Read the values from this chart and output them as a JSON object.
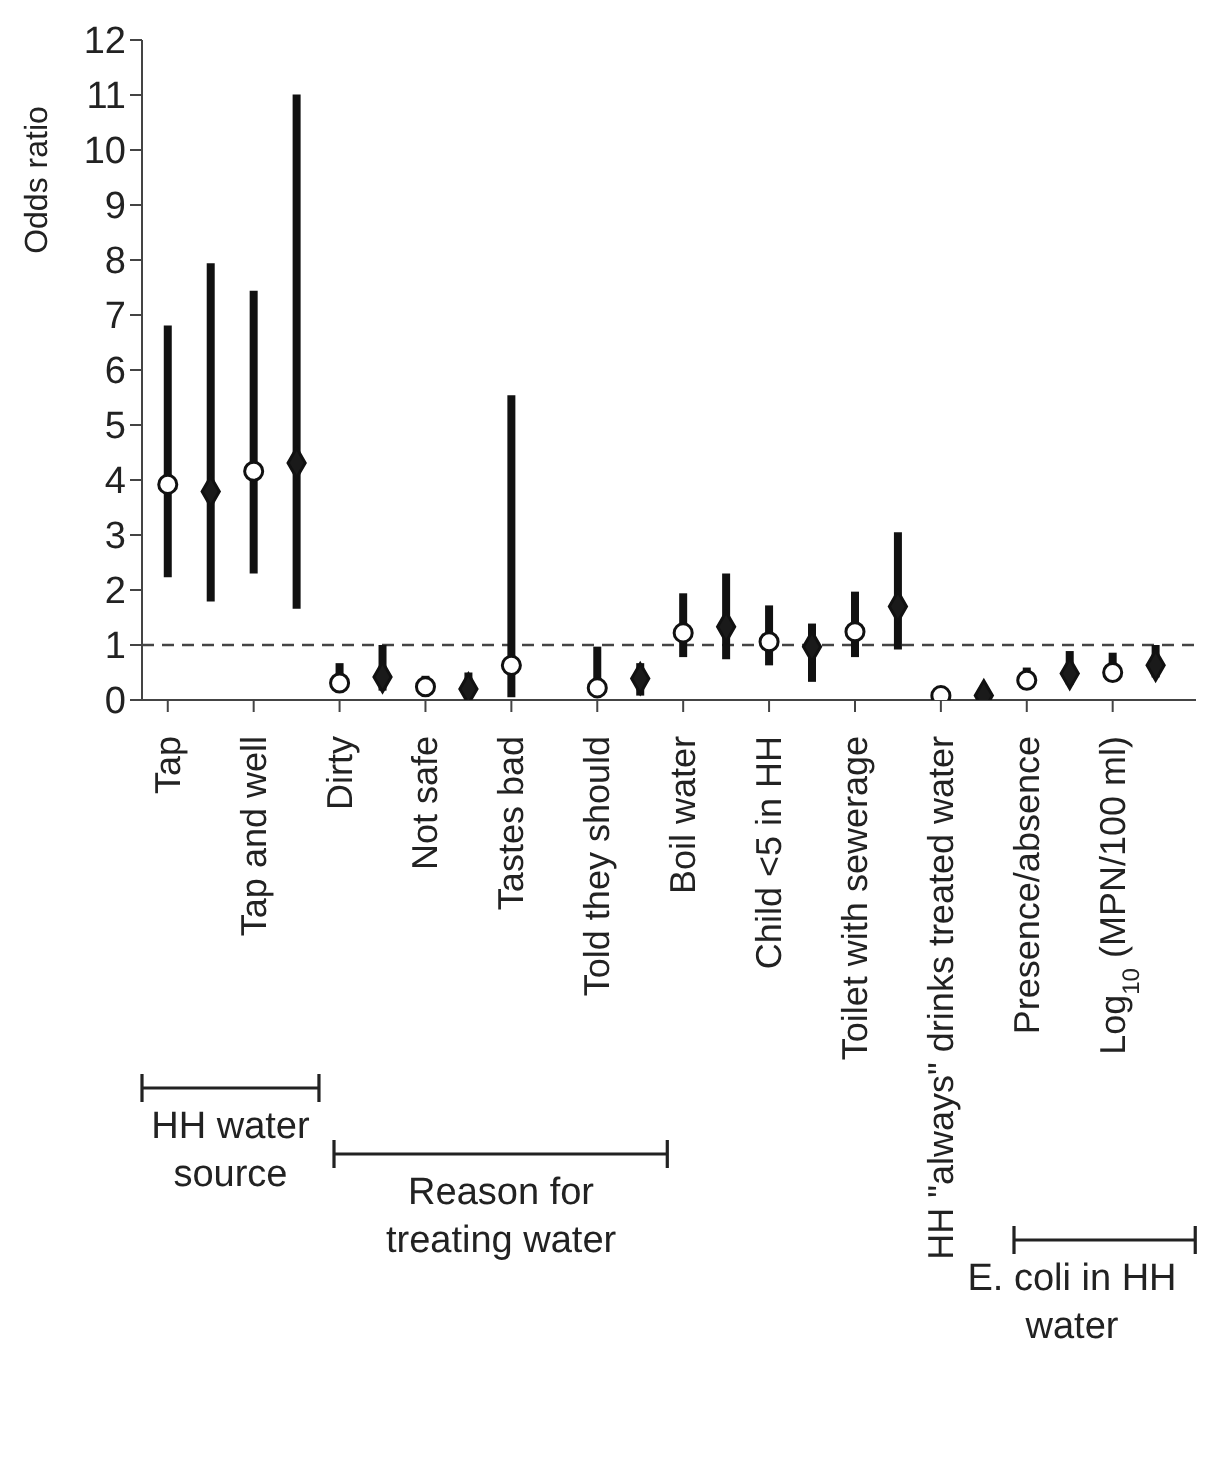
{
  "chart_data": {
    "type": "scatter",
    "ylabel": "Odds ratio",
    "categories": [
      "Tap",
      null,
      "Tap and well",
      null,
      "Dirty",
      null,
      "Not safe",
      null,
      "Tastes bad",
      null,
      "Told they should",
      null,
      "Boil water",
      null,
      "Child <5 in HH",
      null,
      "Toilet with sewerage",
      null,
      "HH \"always\" drinks treated water",
      null,
      "Presence/absence",
      null,
      "Log$_{10}$ (MPN/100 ml)",
      null
    ],
    "series": [
      {
        "color": "#ffffff",
        "marker": "circle",
        "values": [
          3.92,
          null,
          4.16,
          null,
          0.31,
          null,
          0.24,
          null,
          0.63,
          null,
          0.22,
          null,
          1.22,
          null,
          1.06,
          null,
          1.24,
          null,
          0.08,
          null,
          0.36,
          null,
          0.5,
          null
        ],
        "errors": [
          [
            2.23,
            6.81
          ],
          null,
          [
            2.3,
            7.44
          ],
          null,
          [
            0.15,
            0.67
          ],
          null,
          [
            0.15,
            0.44
          ],
          null,
          [
            0.05,
            5.54
          ],
          null,
          [
            0.1,
            0.97
          ],
          null,
          [
            0.78,
            1.94
          ],
          null,
          [
            0.63,
            1.72
          ],
          null,
          [
            0.78,
            1.97
          ],
          null,
          null,
          null,
          [
            0.25,
            0.59
          ],
          null,
          [
            0.38,
            0.86
          ],
          null
        ]
      },
      {
        "color": "#1a1a1a",
        "marker": "diamond",
        "values": [
          null,
          3.79,
          null,
          4.31,
          null,
          0.42,
          null,
          0.2,
          null,
          null,
          null,
          0.39,
          null,
          1.33,
          null,
          0.97,
          null,
          1.7,
          null,
          0.08,
          null,
          0.48,
          null,
          0.63
        ],
        "errors": [
          null,
          [
            1.79,
            7.94
          ],
          null,
          [
            1.66,
            11.01
          ],
          null,
          [
            0.17,
            1.0
          ],
          null,
          [
            0.12,
            0.5
          ],
          null,
          null,
          null,
          [
            0.08,
            0.67
          ],
          null,
          [
            0.74,
            2.3
          ],
          null,
          [
            0.33,
            1.39
          ],
          null,
          [
            0.92,
            3.05
          ],
          null,
          null,
          null,
          [
            0.28,
            0.89
          ],
          null,
          [
            0.41,
            1.0
          ]
        ]
      }
    ],
    "ylim": [
      0,
      12
    ],
    "yticks": [
      0,
      1,
      2,
      3,
      4,
      5,
      6,
      7,
      8,
      9,
      10,
      11,
      12
    ],
    "ref_lines": [
      {
        "axis": "y",
        "value": 1,
        "line_style": "dashed",
        "color": "#444444"
      }
    ],
    "annotations": [
      "HH water source",
      "Reason for treating water",
      "E. coli in HH water"
    ]
  }
}
